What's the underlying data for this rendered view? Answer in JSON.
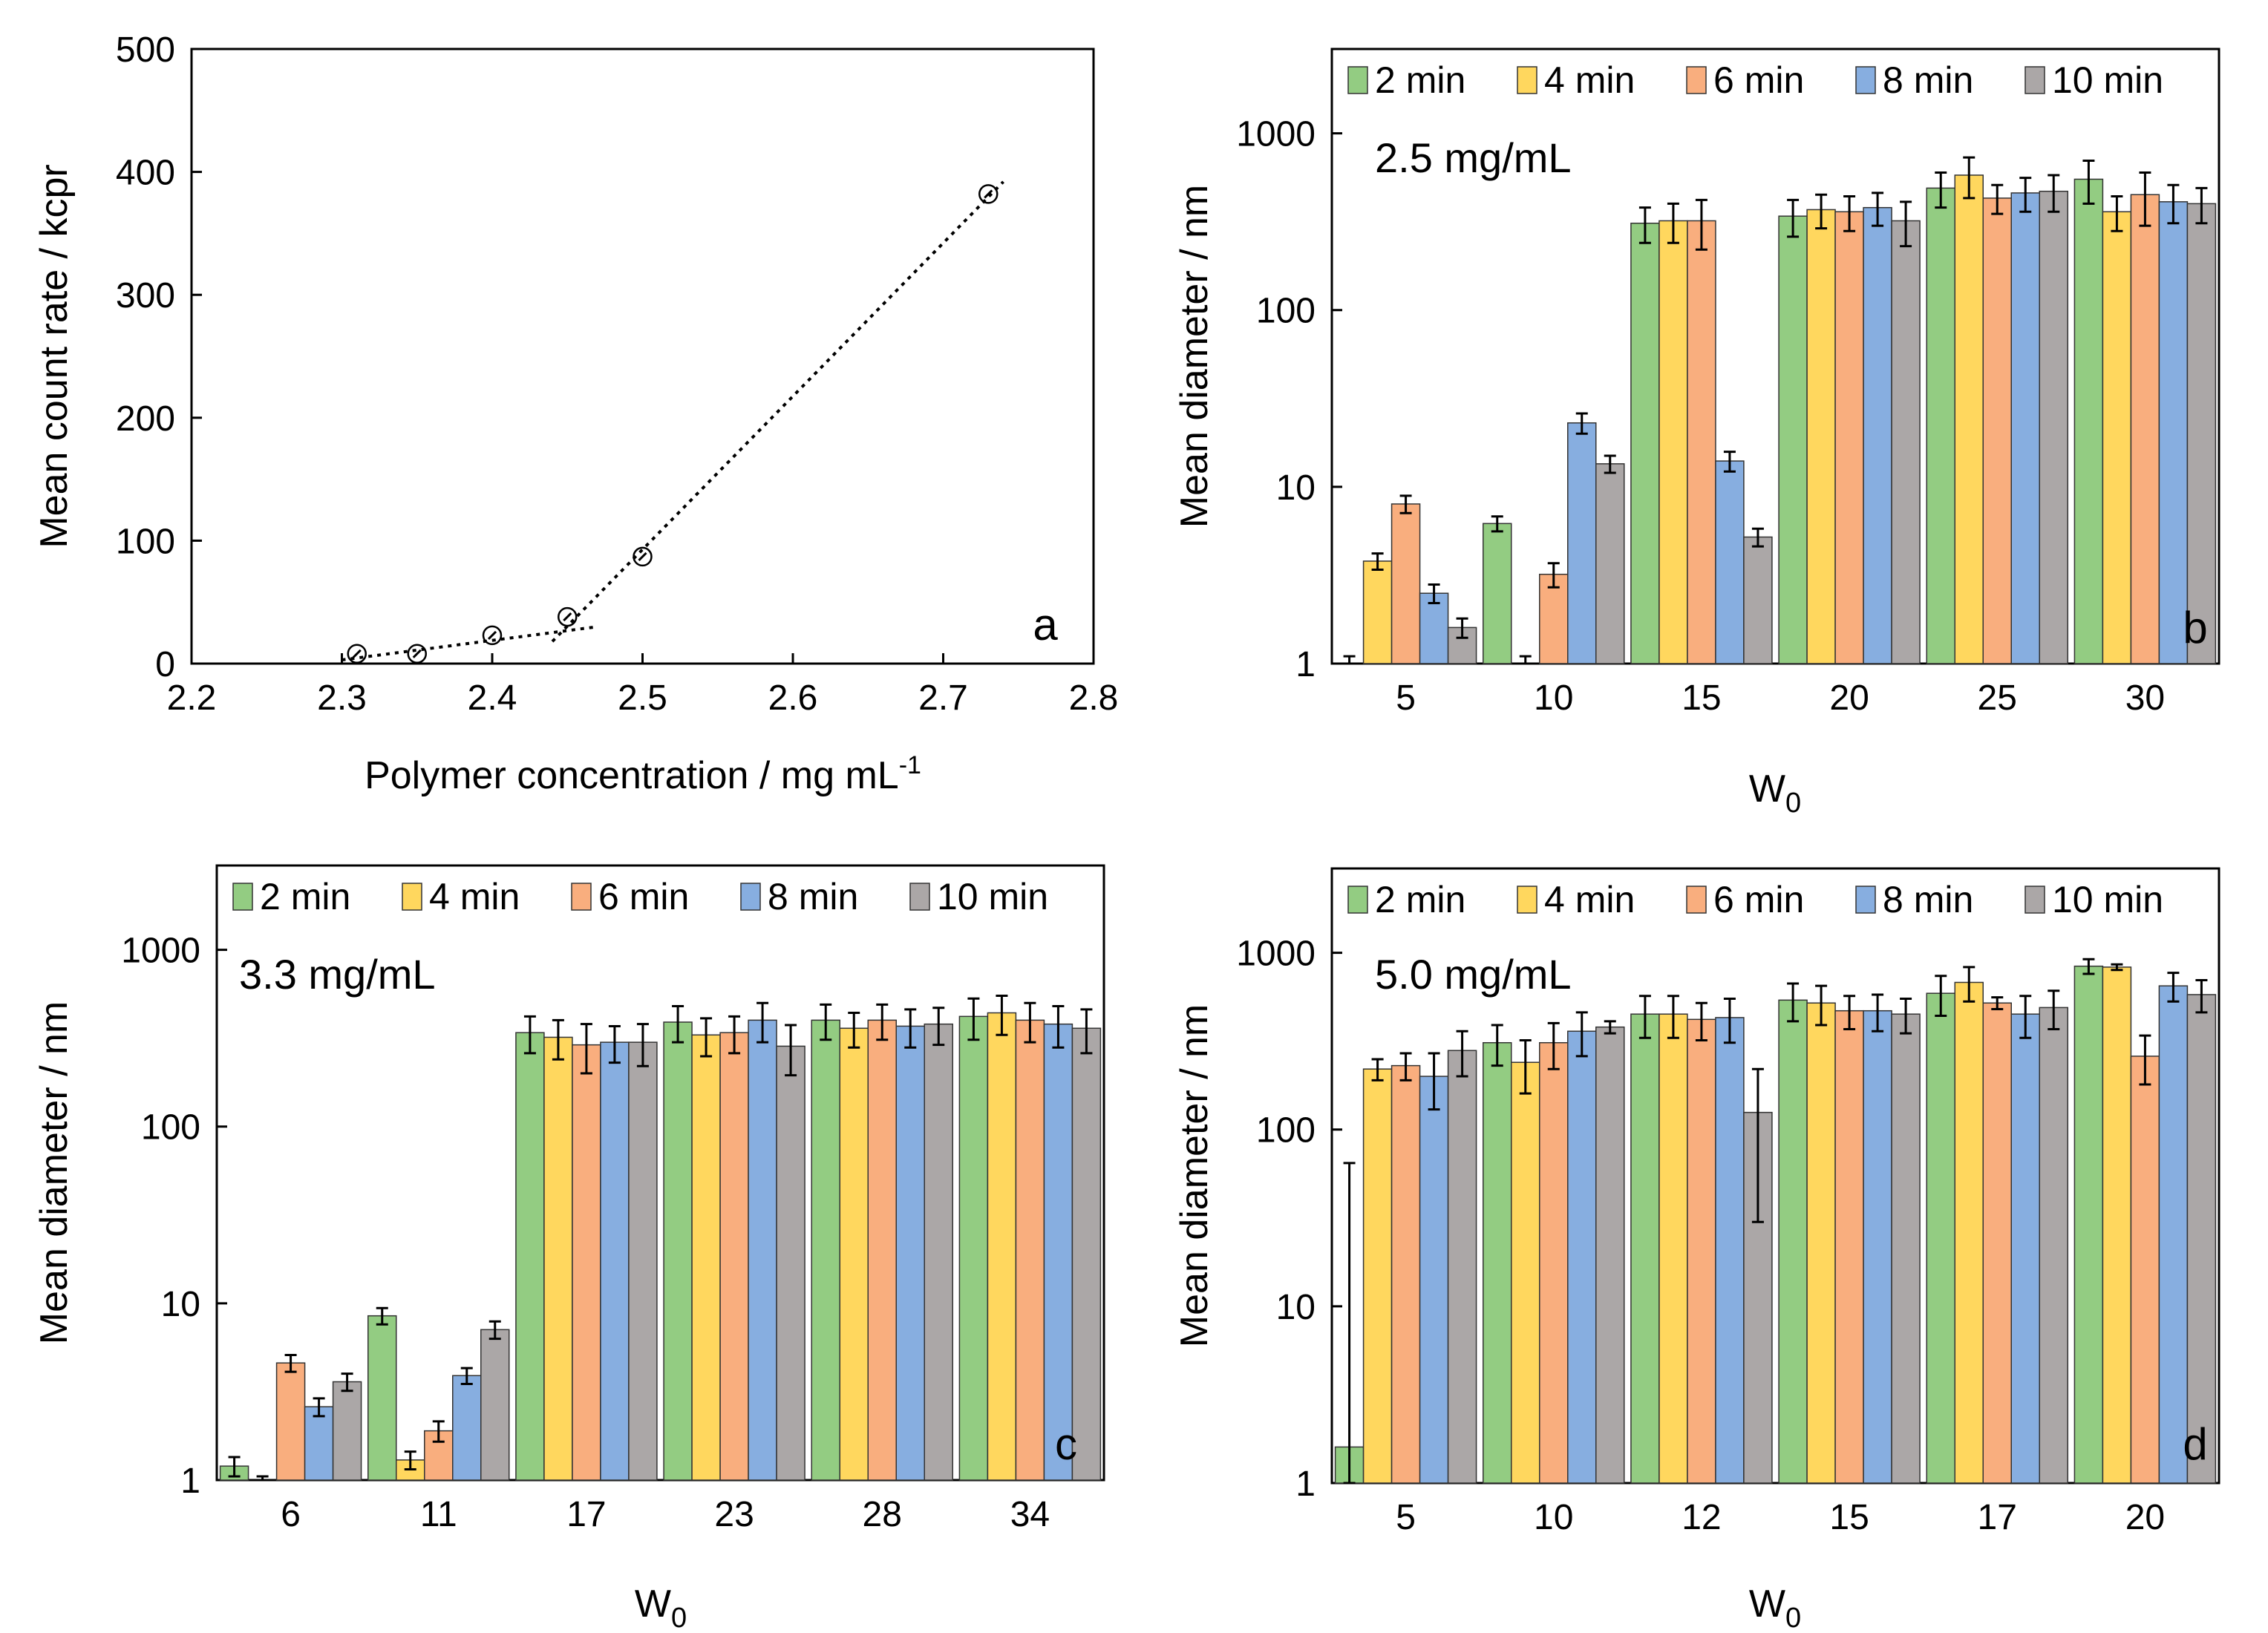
{
  "colors": {
    "2 min": "#93CC82",
    "4 min": "#FFD75E",
    "6 min": "#F9AE7E",
    "8 min": "#87AEE0",
    "10 min": "#ABA7A7"
  },
  "chart_data": [
    {
      "id": "a",
      "type": "scatter",
      "panel_letter": "a",
      "xlabel": "Polymer concentration / mg mL",
      "xlabel_sup": "-1",
      "ylabel": "Mean count rate / kcpr",
      "xlim": [
        2.2,
        2.8
      ],
      "ylim": [
        0,
        500
      ],
      "xticks": [
        2.2,
        2.3,
        2.4,
        2.5,
        2.6,
        2.7,
        2.8
      ],
      "xtick_labels": [
        "2.2",
        "2.3",
        "2.4",
        "2.5",
        "2.6",
        "2.7",
        "2.8"
      ],
      "yticks": [
        0,
        100,
        200,
        300,
        400,
        500
      ],
      "ytick_labels": [
        "0",
        "100",
        "200",
        "300",
        "400",
        "500"
      ],
      "points": [
        {
          "x": 2.31,
          "y": 8
        },
        {
          "x": 2.35,
          "y": 8
        },
        {
          "x": 2.4,
          "y": 23
        },
        {
          "x": 2.45,
          "y": 38
        },
        {
          "x": 2.5,
          "y": 87
        },
        {
          "x": 2.73,
          "y": 382
        }
      ],
      "fit_lines": [
        {
          "x": [
            2.3,
            2.47
          ],
          "y": [
            3,
            30
          ]
        },
        {
          "x": [
            2.44,
            2.74
          ],
          "y": [
            18,
            392
          ]
        }
      ]
    },
    {
      "id": "b",
      "type": "bar",
      "panel_letter": "b",
      "concentration_label": "2.5 mg/mL",
      "xlabel": "W",
      "xlabel_sub": "0",
      "ylabel": "Mean diameter / nm",
      "yscale": "log",
      "ylim": [
        1,
        3000
      ],
      "yticks": [
        1,
        10,
        100,
        1000
      ],
      "ytick_labels": [
        "1",
        "10",
        "100",
        "1000"
      ],
      "categories": [
        "5",
        "10",
        "15",
        "20",
        "25",
        "30"
      ],
      "legend": [
        "2 min",
        "4 min",
        "6 min",
        "8 min",
        "10 min"
      ],
      "series": [
        {
          "name": "2 min",
          "values": [
            1,
            6.2,
            310,
            340,
            490,
            550
          ],
          "errors": [
            0.1,
            0.6,
            70,
            80,
            110,
            150
          ]
        },
        {
          "name": "4 min",
          "values": [
            3.8,
            1,
            320,
            370,
            580,
            360
          ],
          "errors": [
            0.4,
            0.1,
            80,
            80,
            150,
            80
          ]
        },
        {
          "name": "6 min",
          "values": [
            8,
            3.2,
            320,
            360,
            430,
            450
          ],
          "errors": [
            0.9,
            0.5,
            100,
            80,
            80,
            150
          ]
        },
        {
          "name": "8 min",
          "values": [
            2.5,
            23,
            14,
            380,
            460,
            410
          ],
          "errors": [
            0.3,
            3,
            1.8,
            80,
            100,
            100
          ]
        },
        {
          "name": "10 min",
          "values": [
            1.6,
            13.5,
            5.2,
            320,
            470,
            400
          ],
          "errors": [
            0.2,
            1.5,
            0.6,
            90,
            110,
            90
          ]
        }
      ]
    },
    {
      "id": "c",
      "type": "bar",
      "panel_letter": "c",
      "concentration_label": "3.3 mg/mL",
      "xlabel": "W",
      "xlabel_sub": "0",
      "ylabel": "Mean diameter / nm",
      "yscale": "log",
      "ylim": [
        1,
        3000
      ],
      "yticks": [
        1,
        10,
        100,
        1000
      ],
      "ytick_labels": [
        "1",
        "10",
        "100",
        "1000"
      ],
      "categories": [
        "6",
        "11",
        "17",
        "23",
        "28",
        "34"
      ],
      "legend": [
        "2 min",
        "4 min",
        "6 min",
        "8 min",
        "10 min"
      ],
      "series": [
        {
          "name": "2 min",
          "values": [
            1.2,
            8.5,
            340,
            390,
            400,
            420
          ],
          "errors": [
            0.15,
            0.9,
            80,
            90,
            90,
            110
          ]
        },
        {
          "name": "4 min",
          "values": [
            1,
            1.3,
            320,
            330,
            360,
            440
          ],
          "errors": [
            0.05,
            0.15,
            80,
            80,
            80,
            110
          ]
        },
        {
          "name": "6 min",
          "values": [
            4.6,
            1.9,
            290,
            340,
            400,
            400
          ],
          "errors": [
            0.5,
            0.25,
            90,
            80,
            90,
            100
          ]
        },
        {
          "name": "8 min",
          "values": [
            2.6,
            3.9,
            300,
            400,
            370,
            380
          ],
          "errors": [
            0.3,
            0.4,
            70,
            100,
            90,
            100
          ]
        },
        {
          "name": "10 min",
          "values": [
            3.6,
            7.1,
            300,
            285,
            380,
            360
          ],
          "errors": [
            0.4,
            0.8,
            80,
            90,
            90,
            100
          ]
        }
      ]
    },
    {
      "id": "d",
      "type": "bar",
      "panel_letter": "d",
      "concentration_label": "5.0 mg/mL",
      "xlabel": "W",
      "xlabel_sub": "0",
      "ylabel": "Mean diameter / nm",
      "yscale": "log",
      "ylim": [
        1,
        3000
      ],
      "yticks": [
        1,
        10,
        100,
        1000
      ],
      "ytick_labels": [
        "1",
        "10",
        "100",
        "1000"
      ],
      "categories": [
        "5",
        "10",
        "12",
        "15",
        "17",
        "20"
      ],
      "legend": [
        "2 min",
        "4 min",
        "6 min",
        "8 min",
        "10 min"
      ],
      "series": [
        {
          "name": "2 min",
          "values": [
            1.6,
            310,
            450,
            540,
            590,
            840
          ],
          "errors": [
            63,
            80,
            120,
            130,
            150,
            80
          ]
        },
        {
          "name": "4 min",
          "values": [
            220,
            240,
            450,
            520,
            680,
            830
          ],
          "errors": [
            30,
            80,
            120,
            130,
            150,
            30
          ]
        },
        {
          "name": "6 min",
          "values": [
            230,
            310,
            420,
            470,
            520,
            260
          ],
          "errors": [
            40,
            90,
            100,
            100,
            40,
            80
          ]
        },
        {
          "name": "8 min",
          "values": [
            200,
            360,
            430,
            470,
            450,
            650
          ],
          "errors": [
            70,
            100,
            120,
            110,
            120,
            120
          ]
        },
        {
          "name": "10 min",
          "values": [
            280,
            380,
            125,
            450,
            490,
            580
          ],
          "errors": [
            80,
            30,
            95,
            100,
            120,
            120
          ]
        }
      ]
    }
  ]
}
